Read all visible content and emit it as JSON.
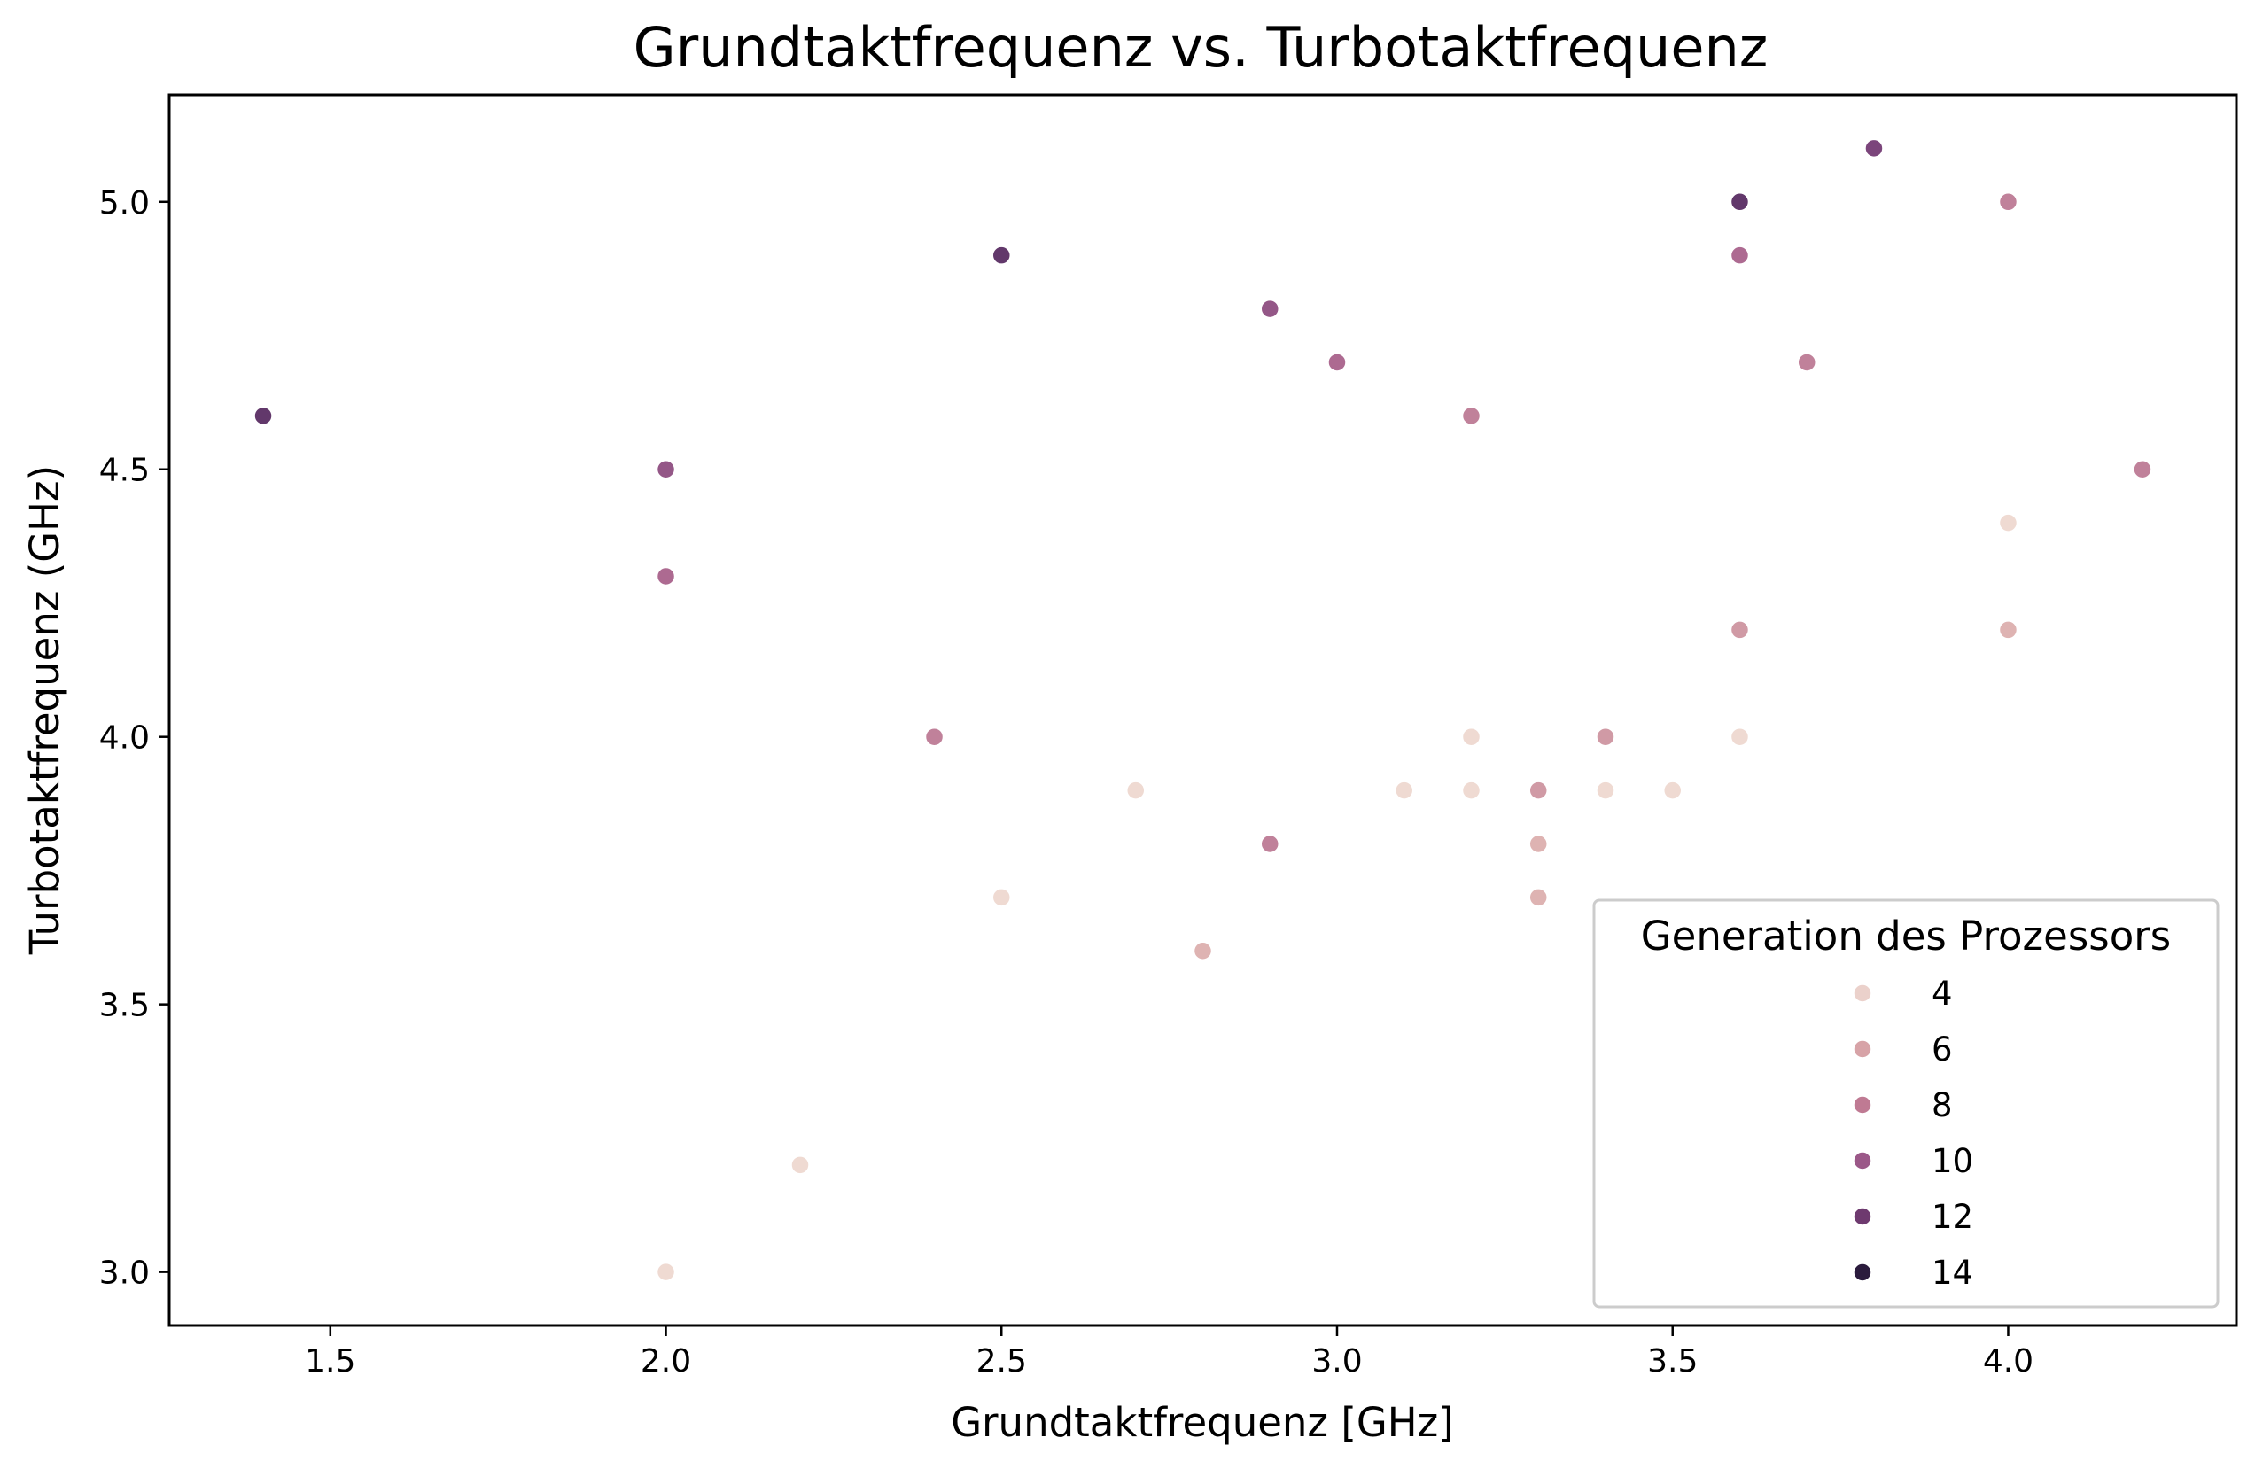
{
  "chart_data": {
    "type": "scatter",
    "title": "Grundtaktfrequenz vs. Turbotaktfrequenz",
    "xlabel": "Grundtaktfrequenz [GHz]",
    "ylabel": "Turbotaktfrequenz (GHz)",
    "xlim": [
      1.26,
      4.34
    ],
    "ylim": [
      2.9,
      5.2
    ],
    "xticks": [
      "1.5",
      "2.0",
      "2.5",
      "3.0",
      "3.5",
      "4.0"
    ],
    "yticks": [
      "3.0",
      "3.5",
      "4.0",
      "4.5",
      "5.0"
    ],
    "grid": false,
    "legend": {
      "title": "Generation des Prozessors",
      "placement": "lower-right",
      "entries": [
        {
          "label": "4",
          "color": "#ebd1cb"
        },
        {
          "label": "6",
          "color": "#d7a3a7"
        },
        {
          "label": "8",
          "color": "#bf7a93"
        },
        {
          "label": "10",
          "color": "#9b5888"
        },
        {
          "label": "12",
          "color": "#6e3a6f"
        },
        {
          "label": "14",
          "color": "#2b1b3d"
        }
      ]
    },
    "colorscale": {
      "min": 4,
      "max": 14,
      "stops": [
        "#efdad2",
        "#e2bcb7",
        "#cc91a0",
        "#ad6a91",
        "#834a80",
        "#5a3366",
        "#2b1b3d"
      ]
    },
    "points": [
      {
        "x": 1.4,
        "y": 4.6,
        "generation": 12
      },
      {
        "x": 2.0,
        "y": 4.5,
        "generation": 10
      },
      {
        "x": 2.0,
        "y": 4.3,
        "generation": 9
      },
      {
        "x": 2.0,
        "y": 3.0,
        "generation": 4
      },
      {
        "x": 2.2,
        "y": 3.2,
        "generation": 4
      },
      {
        "x": 2.4,
        "y": 4.0,
        "generation": 8
      },
      {
        "x": 2.5,
        "y": 4.9,
        "generation": 12
      },
      {
        "x": 2.5,
        "y": 3.7,
        "generation": 4
      },
      {
        "x": 2.7,
        "y": 3.9,
        "generation": 4
      },
      {
        "x": 2.8,
        "y": 3.6,
        "generation": 6
      },
      {
        "x": 2.9,
        "y": 4.8,
        "generation": 10
      },
      {
        "x": 2.9,
        "y": 3.8,
        "generation": 8
      },
      {
        "x": 3.0,
        "y": 4.7,
        "generation": 9
      },
      {
        "x": 3.1,
        "y": 3.9,
        "generation": 4
      },
      {
        "x": 3.2,
        "y": 4.6,
        "generation": 8
      },
      {
        "x": 3.2,
        "y": 4.0,
        "generation": 4
      },
      {
        "x": 3.2,
        "y": 3.9,
        "generation": 4
      },
      {
        "x": 3.3,
        "y": 3.9,
        "generation": 7
      },
      {
        "x": 3.3,
        "y": 3.8,
        "generation": 6
      },
      {
        "x": 3.3,
        "y": 3.7,
        "generation": 6
      },
      {
        "x": 3.4,
        "y": 4.0,
        "generation": 7
      },
      {
        "x": 3.4,
        "y": 3.9,
        "generation": 4
      },
      {
        "x": 3.5,
        "y": 3.9,
        "generation": 4
      },
      {
        "x": 3.6,
        "y": 5.0,
        "generation": 12
      },
      {
        "x": 3.6,
        "y": 4.9,
        "generation": 9
      },
      {
        "x": 3.6,
        "y": 4.2,
        "generation": 7
      },
      {
        "x": 3.6,
        "y": 4.0,
        "generation": 4
      },
      {
        "x": 3.7,
        "y": 4.7,
        "generation": 8
      },
      {
        "x": 3.8,
        "y": 5.1,
        "generation": 11
      },
      {
        "x": 4.0,
        "y": 5.0,
        "generation": 8
      },
      {
        "x": 4.0,
        "y": 4.4,
        "generation": 4
      },
      {
        "x": 4.0,
        "y": 4.2,
        "generation": 6
      },
      {
        "x": 4.2,
        "y": 4.5,
        "generation": 8
      }
    ]
  }
}
